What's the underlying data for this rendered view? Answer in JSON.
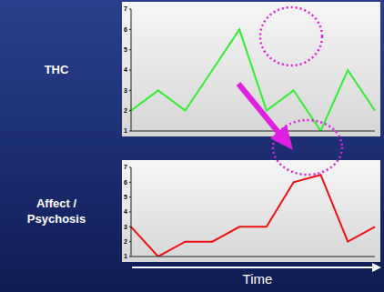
{
  "chart_data": [
    {
      "type": "line",
      "y_label": "THC",
      "categories": [
        null,
        null,
        null,
        null,
        null,
        null,
        null,
        null,
        null,
        null
      ],
      "series": [
        {
          "name": "THC",
          "color": "#33ee33",
          "values": [
            2,
            3,
            2,
            4,
            6,
            2,
            3,
            1,
            4,
            2
          ]
        }
      ],
      "ylim": [
        1,
        7
      ],
      "yticks": [
        1,
        2,
        3,
        4,
        5,
        6,
        7
      ],
      "grid": false,
      "tick_labels": "y"
    },
    {
      "type": "line",
      "y_label": "Affect / Psychosis",
      "x_label": "Time",
      "categories": [
        null,
        null,
        null,
        null,
        null,
        null,
        null,
        null,
        null,
        null
      ],
      "series": [
        {
          "name": "Affect / Psychosis",
          "color": "#ee1111",
          "values": [
            3,
            1,
            2,
            2,
            3,
            3,
            6,
            6.5,
            2,
            3
          ]
        }
      ],
      "ylim": [
        1,
        7
      ],
      "yticks": [
        1,
        2,
        3,
        4,
        5,
        6,
        7
      ],
      "grid": false,
      "tick_labels": "y"
    }
  ]
}
